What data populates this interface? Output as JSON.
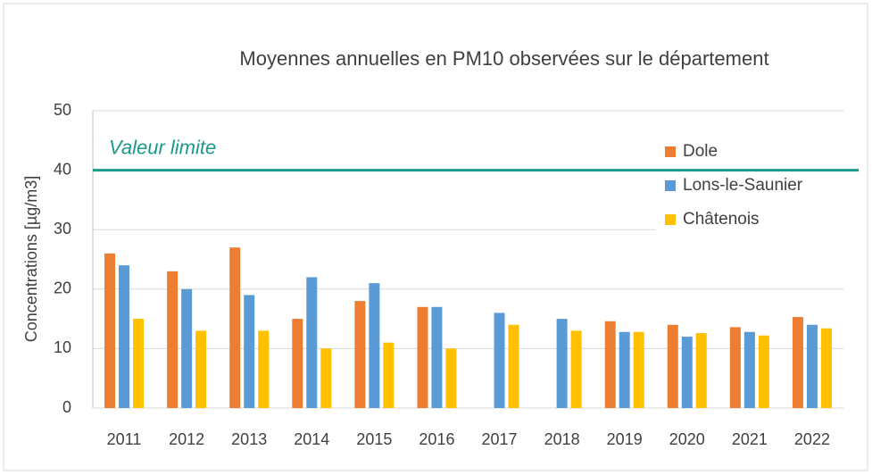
{
  "chart_data": {
    "type": "bar",
    "title": "Moyennes annuelles en PM10 observées sur le département",
    "y_label": "Concentrations [µg/m3]",
    "categories": [
      "2011",
      "2012",
      "2013",
      "2014",
      "2015",
      "2016",
      "2017",
      "2018",
      "2019",
      "2020",
      "2021",
      "2022"
    ],
    "series": [
      {
        "name": "Dole",
        "color": "#ed7d31",
        "values": [
          26,
          23,
          27,
          15,
          18,
          17,
          null,
          null,
          14.6,
          14,
          13.6,
          15.3
        ]
      },
      {
        "name": "Lons-le-Saunier",
        "color": "#5b9bd5",
        "values": [
          24,
          20,
          19,
          22,
          21,
          17,
          16,
          15,
          12.8,
          12,
          12.8,
          14
        ]
      },
      {
        "name": "Châtenois",
        "color": "#ffc000",
        "values": [
          15,
          13,
          13,
          10,
          11,
          10,
          14,
          13,
          12.8,
          12.6,
          12.2,
          13.4
        ]
      }
    ],
    "ylim": [
      0,
      50
    ],
    "yticks": [
      0,
      10,
      20,
      30,
      40,
      50
    ],
    "grid": true,
    "reference_line": {
      "label": "Valeur limite",
      "value": 40,
      "color": "#1a9a8c"
    },
    "legend": "top-right"
  }
}
